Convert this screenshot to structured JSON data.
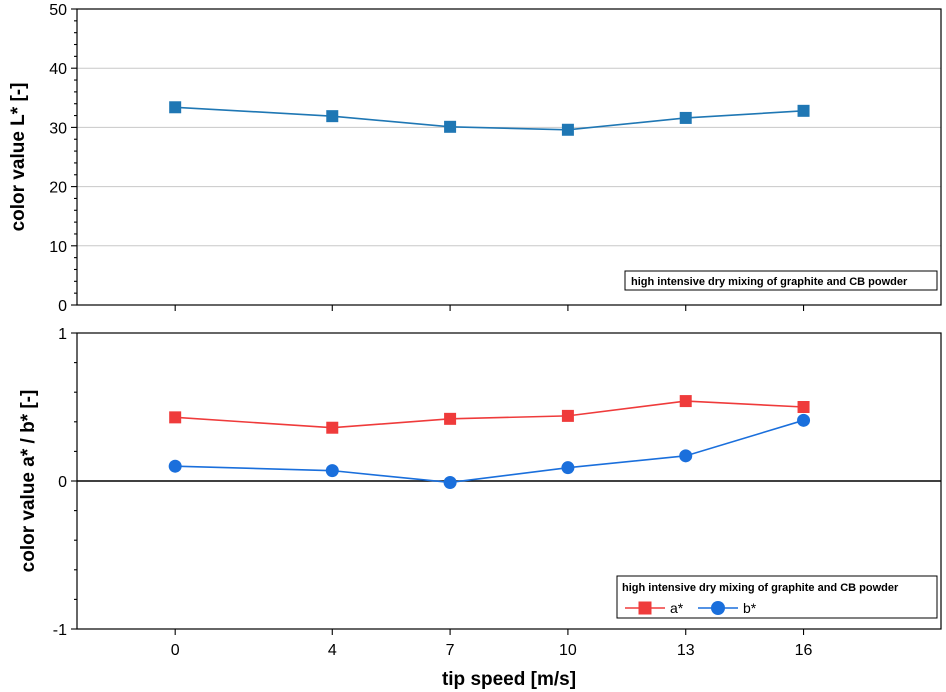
{
  "chart_data": [
    {
      "type": "line",
      "x": [
        0,
        4,
        7,
        10,
        13,
        16
      ],
      "xlabel": "tip speed [m/s]",
      "ylabel": "color value L* [-]",
      "ylim": [
        0,
        50
      ],
      "yticks": [
        0,
        10,
        20,
        30,
        40,
        50
      ],
      "grid": true,
      "series": [
        {
          "name": "",
          "values": [
            33.4,
            31.9,
            30.1,
            29.6,
            31.6,
            32.8
          ],
          "color": "#1f77b4",
          "marker": "square"
        }
      ],
      "legend": {
        "title": "high intensive dry mixing of graphite and CB powder",
        "position": "bottom-right"
      }
    },
    {
      "type": "line",
      "x": [
        0,
        4,
        7,
        10,
        13,
        16
      ],
      "xticks": [
        "0",
        "4",
        "7",
        "10",
        "13",
        "16"
      ],
      "xlabel": "tip speed [m/s]",
      "ylabel": "color value a* / b* [-]",
      "ylim": [
        -1,
        1
      ],
      "yticks": [
        -1,
        0,
        1
      ],
      "grid": false,
      "series": [
        {
          "name": "a*",
          "values": [
            0.43,
            0.36,
            0.42,
            0.44,
            0.54,
            0.5
          ],
          "color": "#ef3b3b",
          "marker": "square"
        },
        {
          "name": "b*",
          "values": [
            0.1,
            0.07,
            -0.01,
            0.09,
            0.17,
            0.41
          ],
          "color": "#1a6fdc",
          "marker": "circle"
        }
      ],
      "legend": {
        "title": "high intensive dry mixing of graphite and CB powder",
        "position": "bottom-right"
      }
    }
  ]
}
